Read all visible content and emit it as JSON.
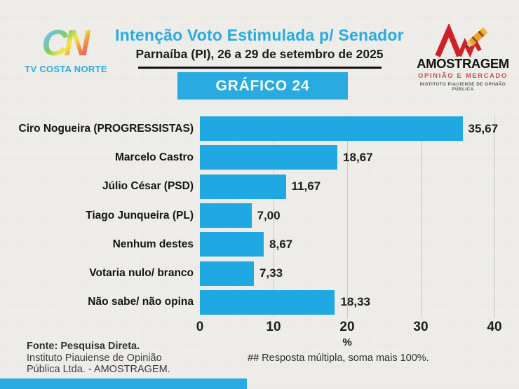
{
  "header": {
    "title": "Intenção Voto Estimulada p/ Senador",
    "subtitle": "Parnaíba (PI), 26 a 29 de setembro de 2025",
    "badge": "GRÁFICO 24",
    "left_logo": {
      "mark": "CN",
      "label": "TV COSTA NORTE"
    },
    "right_logo": {
      "name": "AMOSTRAGEM",
      "tagline": "OPINIÃO E MERCADO",
      "subtext": "INSTITUTO PIAUIENSE DE OPINIÃO PÚBLICA"
    }
  },
  "chart_data": {
    "type": "bar",
    "orientation": "horizontal",
    "categories": [
      "Ciro Nogueira (PROGRESSISTAS)",
      "Marcelo Castro",
      "Júlio César (PSD)",
      "Tiago Junqueira (PL)",
      "Nenhum destes",
      "Votaria nulo/ branco",
      "Não sabe/ não opina"
    ],
    "values": [
      35.67,
      18.67,
      11.67,
      7.0,
      8.67,
      7.33,
      18.33
    ],
    "value_labels": [
      "35,67",
      "18,67",
      "11,67",
      "7,00",
      "8,67",
      "7,33",
      "18,33"
    ],
    "xlabel": "%",
    "x_ticks": [
      0,
      10,
      20,
      30,
      40
    ],
    "x_tick_labels": [
      "0",
      "10",
      "20",
      "30",
      "40"
    ],
    "xlim": [
      0,
      40
    ],
    "grid": true,
    "legend": "none",
    "bar_color": "#1fa8e1"
  },
  "footer": {
    "source_line1": "Fonte: Pesquisa Direta.",
    "source_line2": "Instituto Piauiense de Opinião",
    "source_line3": "Pública Ltda. - AMOSTRAGEM.",
    "note": "## Resposta múltipla, soma mais 100%."
  },
  "colors": {
    "accent": "#29abe2",
    "bar": "#1fa8e1",
    "text_dark": "#1d1d1b",
    "grid": "#c7c7c2",
    "background": "#f0efeb",
    "logo_red": "#cf2128"
  }
}
